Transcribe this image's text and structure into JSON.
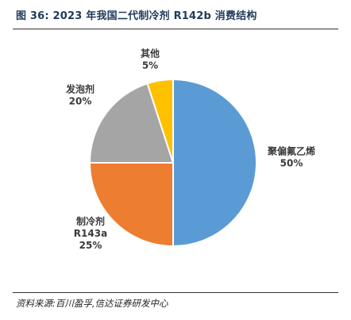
{
  "figure": {
    "title": "图 36:  2023 年我国二代制冷剂 R142b 消费结构",
    "source": "资料来源:百川盈孚,信达证券研发中心"
  },
  "chart_data": {
    "type": "pie",
    "title": "",
    "start_angle_deg": 0,
    "direction": "clockwise",
    "slices": [
      {
        "name_lines": [
          "聚偏氟乙烯"
        ],
        "value": 50,
        "value_label": "50%",
        "color": "#5B9BD5"
      },
      {
        "name_lines": [
          "制冷剂",
          "R143a"
        ],
        "value": 25,
        "value_label": "25%",
        "color": "#ED7D31"
      },
      {
        "name_lines": [
          "发泡剂"
        ],
        "value": 20,
        "value_label": "20%",
        "color": "#A5A5A5"
      },
      {
        "name_lines": [
          "其他"
        ],
        "value": 5,
        "value_label": "5%",
        "color": "#FFC000"
      }
    ],
    "legend": "none"
  }
}
